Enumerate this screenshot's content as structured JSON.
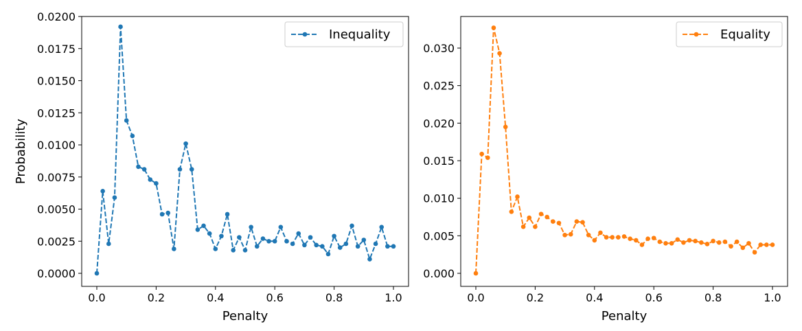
{
  "chart_data": [
    {
      "type": "line",
      "title": "",
      "xlabel": "Penalty",
      "ylabel": "Probability",
      "xlim": [
        -0.05,
        1.05
      ],
      "ylim": [
        -0.0018,
        0.0205
      ],
      "xticks": [
        "0.0",
        "0.2",
        "0.4",
        "0.6",
        "0.8",
        "1.0"
      ],
      "yticks": [
        "0.0000",
        "0.0025",
        "0.0050",
        "0.0075",
        "0.0100",
        "0.0125",
        "0.0150",
        "0.0175",
        "0.0200"
      ],
      "legend": {
        "position": "upper right",
        "entries": [
          "Inequality"
        ]
      },
      "grid": false,
      "series": [
        {
          "name": "Inequality",
          "color": "#1f77b4",
          "linestyle": "dashed",
          "marker": "circle",
          "x": [
            0.0,
            0.02,
            0.04,
            0.06,
            0.08,
            0.1,
            0.12,
            0.14,
            0.16,
            0.18,
            0.2,
            0.22,
            0.24,
            0.26,
            0.28,
            0.3,
            0.32,
            0.34,
            0.36,
            0.38,
            0.4,
            0.42,
            0.44,
            0.46,
            0.48,
            0.5,
            0.52,
            0.54,
            0.56,
            0.58,
            0.6,
            0.62,
            0.64,
            0.66,
            0.68,
            0.7,
            0.72,
            0.74,
            0.76,
            0.78,
            0.8,
            0.82,
            0.84,
            0.86,
            0.88,
            0.9,
            0.92,
            0.94,
            0.96,
            0.98,
            1.0
          ],
          "values": [
            0.0,
            0.0064,
            0.0023,
            0.0059,
            0.0192,
            0.0119,
            0.0107,
            0.0083,
            0.0081,
            0.0073,
            0.007,
            0.0046,
            0.0047,
            0.0019,
            0.0081,
            0.0101,
            0.0081,
            0.0034,
            0.0037,
            0.0031,
            0.0019,
            0.0029,
            0.0046,
            0.0018,
            0.0028,
            0.0018,
            0.0036,
            0.0021,
            0.0027,
            0.0025,
            0.0025,
            0.0036,
            0.0025,
            0.0023,
            0.0031,
            0.0022,
            0.0028,
            0.0022,
            0.0021,
            0.0015,
            0.0029,
            0.002,
            0.0023,
            0.0037,
            0.0021,
            0.0026,
            0.0011,
            0.0023,
            0.0036,
            0.0021,
            0.0021
          ]
        }
      ]
    },
    {
      "type": "line",
      "title": "",
      "xlabel": "Penalty",
      "ylabel": "",
      "xlim": [
        -0.05,
        1.05
      ],
      "ylim": [
        -0.0017,
        0.0343
      ],
      "xticks": [
        "0.0",
        "0.2",
        "0.4",
        "0.6",
        "0.8",
        "1.0"
      ],
      "yticks": [
        "0.000",
        "0.005",
        "0.010",
        "0.015",
        "0.020",
        "0.025",
        "0.030"
      ],
      "legend": {
        "position": "upper right",
        "entries": [
          "Equality"
        ]
      },
      "grid": false,
      "series": [
        {
          "name": "Equality",
          "color": "#ff7f0e",
          "linestyle": "dashed",
          "marker": "circle",
          "x": [
            0.0,
            0.02,
            0.04,
            0.06,
            0.08,
            0.1,
            0.12,
            0.14,
            0.16,
            0.18,
            0.2,
            0.22,
            0.24,
            0.26,
            0.28,
            0.3,
            0.32,
            0.34,
            0.36,
            0.38,
            0.4,
            0.42,
            0.44,
            0.46,
            0.48,
            0.5,
            0.52,
            0.54,
            0.56,
            0.58,
            0.6,
            0.62,
            0.64,
            0.66,
            0.68,
            0.7,
            0.72,
            0.74,
            0.76,
            0.78,
            0.8,
            0.82,
            0.84,
            0.86,
            0.88,
            0.9,
            0.92,
            0.94,
            0.96,
            0.98,
            1.0
          ],
          "values": [
            0.0,
            0.0159,
            0.0154,
            0.0327,
            0.0293,
            0.0195,
            0.0082,
            0.0102,
            0.0062,
            0.0074,
            0.0062,
            0.0079,
            0.0075,
            0.0069,
            0.0067,
            0.0051,
            0.0052,
            0.0069,
            0.0068,
            0.0051,
            0.0044,
            0.0054,
            0.0048,
            0.0048,
            0.0048,
            0.0049,
            0.0046,
            0.0044,
            0.0038,
            0.0046,
            0.0047,
            0.0042,
            0.004,
            0.004,
            0.0045,
            0.0041,
            0.0044,
            0.0043,
            0.0041,
            0.0039,
            0.0043,
            0.0041,
            0.0042,
            0.0036,
            0.0042,
            0.0034,
            0.004,
            0.0028,
            0.0038,
            0.0038,
            0.0038
          ]
        }
      ]
    }
  ]
}
